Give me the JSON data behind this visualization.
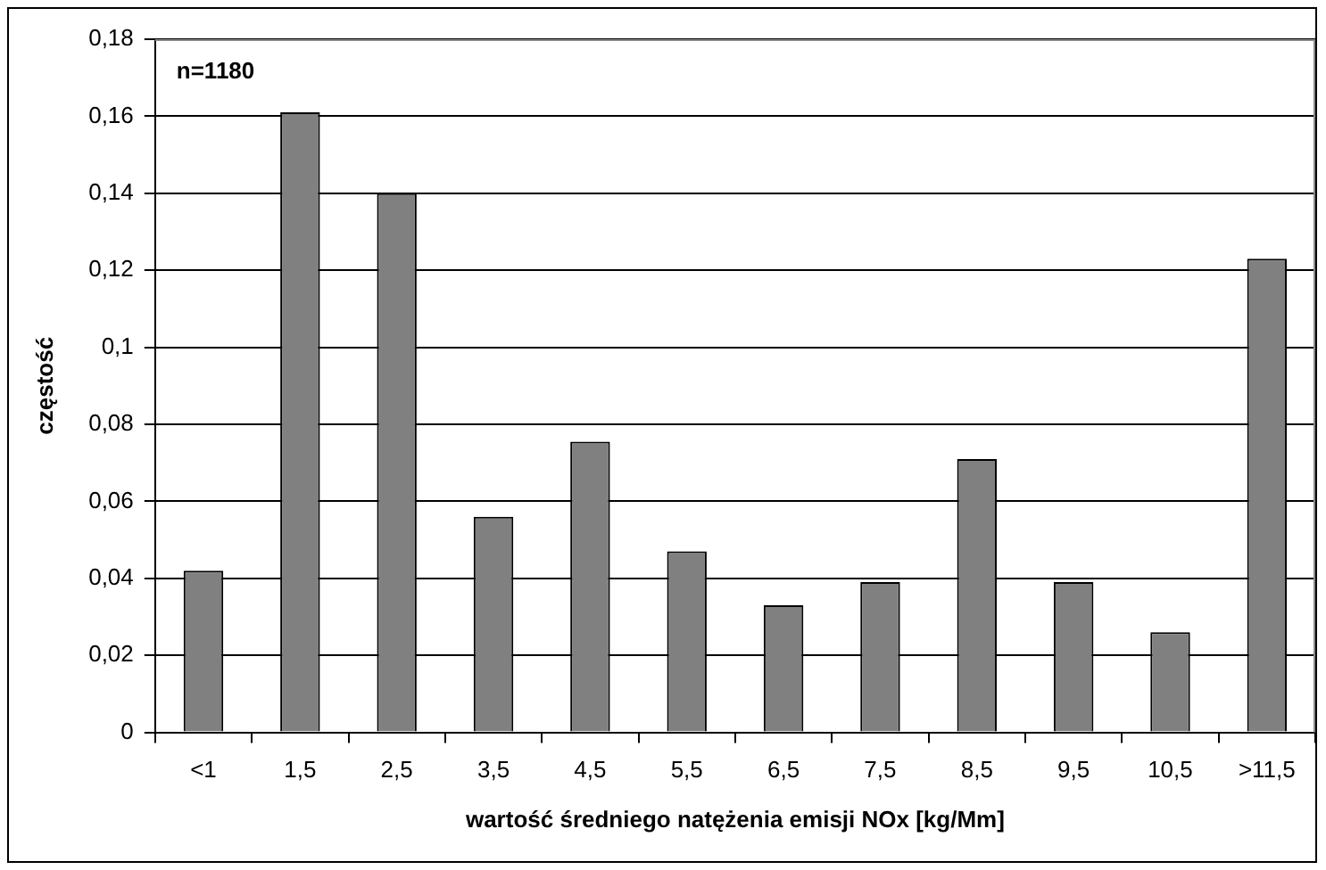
{
  "chart_data": {
    "type": "bar",
    "xlabel": "wartość średniego natężenia emisji NOx [kg/Mm]",
    "ylabel": "częstość",
    "annotations": [
      "n=1180"
    ],
    "categories": [
      "<1",
      "1,5",
      "2,5",
      "3,5",
      "4,5",
      "5,5",
      "6,5",
      "7,5",
      "8,5",
      "9,5",
      "10,5",
      ">11,5"
    ],
    "values": [
      0.042,
      0.161,
      0.14,
      0.056,
      0.0755,
      0.047,
      0.033,
      0.039,
      0.071,
      0.039,
      0.026,
      0.123
    ],
    "color": "#808080",
    "ylim": [
      0,
      0.18
    ],
    "yticks": [
      0,
      {
        "value": 0.02,
        "label": "0,02"
      },
      {
        "value": 0.04,
        "label": "0,04"
      },
      {
        "value": 0.06,
        "label": "0,06"
      },
      {
        "value": 0.08,
        "label": "0,08"
      },
      {
        "value": 0.1,
        "label": "0,1"
      },
      {
        "value": 0.12,
        "label": "0,12"
      },
      {
        "value": 0.14,
        "label": "0,14"
      },
      {
        "value": 0.16,
        "label": "0,16"
      },
      {
        "value": 0.18,
        "label": "0,18"
      }
    ],
    "grid": "y",
    "legend": false
  }
}
